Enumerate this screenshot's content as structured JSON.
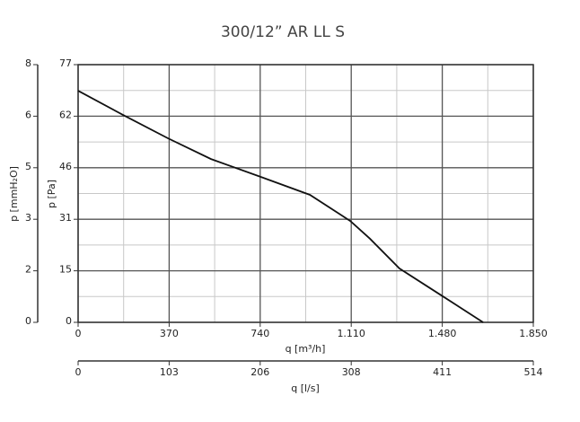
{
  "chart_data": {
    "type": "line",
    "title": "300/12” AR LL S",
    "xlabel": "q [m³/h]",
    "ylabel": "p [Pa]",
    "y2label": "p [mmH₂O]",
    "x2label": "q [l/s]",
    "x": [
      0,
      182,
      365,
      540,
      741,
      942,
      1106,
      1186,
      1306,
      1471,
      1646
    ],
    "series": [
      {
        "color": "#111111",
        "values": [
          69.2,
          62,
          55,
          48.8,
          43.5,
          38.1,
          30.3,
          25,
          16.1,
          8.3,
          0
        ]
      }
    ],
    "xlim": [
      0,
      1850
    ],
    "xticks": [
      0,
      370,
      740,
      {
        "value": 1110,
        "label": "1.110"
      },
      {
        "value": 1480,
        "label": "1.480"
      },
      {
        "value": 1850,
        "label": "1.850"
      }
    ],
    "ylim": [
      0,
      77
    ],
    "yticks": [
      0,
      {
        "value": 15.4,
        "label": "15"
      },
      {
        "value": 30.8,
        "label": "31"
      },
      {
        "value": 46.2,
        "label": "46"
      },
      {
        "value": 61.6,
        "label": "62"
      },
      77
    ],
    "y2lim": [
      0,
      7.85
    ],
    "y2ticks": [
      0,
      {
        "value": 1.57,
        "label": "2"
      },
      {
        "value": 3.14,
        "label": "3"
      },
      {
        "value": 4.71,
        "label": "5"
      },
      {
        "value": 6.28,
        "label": "6"
      },
      {
        "value": 7.85,
        "label": "8"
      }
    ],
    "x2lim": [
      0,
      514
    ],
    "x2ticks": [
      0,
      {
        "value": 102.8,
        "label": "103"
      },
      {
        "value": 205.6,
        "label": "206"
      },
      {
        "value": 308.4,
        "label": "308"
      },
      {
        "value": 411.2,
        "label": "411"
      },
      514
    ],
    "grid": true
  }
}
